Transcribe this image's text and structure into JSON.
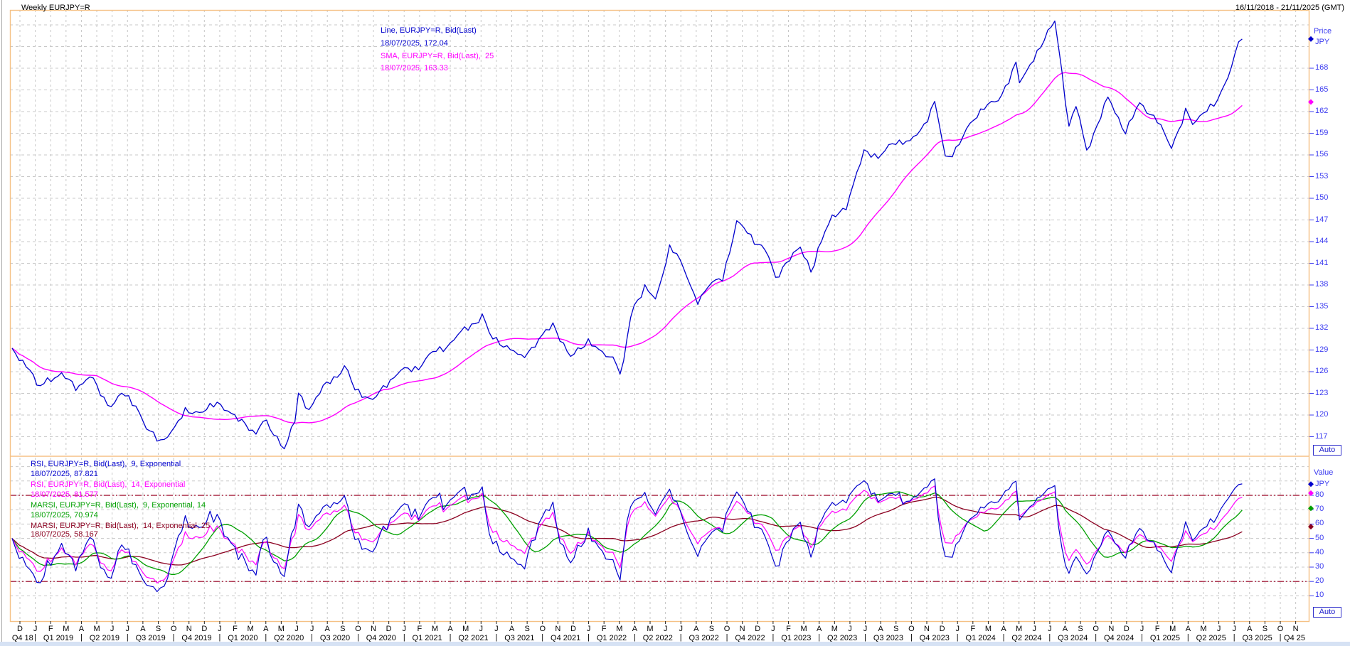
{
  "window": {
    "title": "Weekly EURJPY=R",
    "date_range": "16/11/2018 - 21/11/2025 (GMT)"
  },
  "colors": {
    "price_line": "#0000cc",
    "sma_line": "#ff00ff",
    "rsi9": "#0000cc",
    "rsi14": "#ff00ff",
    "marsi9_14": "#00a000",
    "marsi14_25": "#8b0020",
    "level_line": "#990022",
    "grid": "#c8c8c8",
    "frame": "#f5c185",
    "axis_text": "#3c3cf0",
    "x_axis_text": "#000000",
    "auto_button": "#2222cc"
  },
  "main_panel": {
    "legend": [
      {
        "text": "Line, EURJPY=R, Bid(Last)",
        "color": "#0000cc"
      },
      {
        "text": "18/07/2025, 172.04",
        "color": "#0000cc"
      },
      {
        "text": "SMA, EURJPY=R, Bid(Last),  25",
        "color": "#ff00ff"
      },
      {
        "text": "18/07/2025, 163.33",
        "color": "#ff00ff"
      }
    ],
    "axis": {
      "header": "Price",
      "currency": "JPY",
      "ticks": [
        168,
        165,
        162,
        159,
        156,
        153,
        150,
        147,
        144,
        141,
        138,
        135,
        132,
        129,
        126,
        123,
        120,
        117
      ],
      "markers": [
        {
          "value": 172.04,
          "color": "#0000cc"
        },
        {
          "value": 163.33,
          "color": "#ff00ff"
        }
      ],
      "auto_label": "Auto"
    }
  },
  "rsi_panel": {
    "legend": [
      {
        "text": "RSI, EURJPY=R, Bid(Last),  9, Exponential",
        "color": "#0000cc"
      },
      {
        "text": "18/07/2025, 87.821",
        "color": "#0000cc"
      },
      {
        "text": "RSI, EURJPY=R, Bid(Last),  14, Exponential",
        "color": "#ff00ff"
      },
      {
        "text": "18/07/2025, 81.577",
        "color": "#ff00ff"
      },
      {
        "text": "MARSI, EURJPY=R, Bid(Last),  9, Exponential, 14",
        "color": "#00a000"
      },
      {
        "text": "18/07/2025, 70.974",
        "color": "#00a000"
      },
      {
        "text": "MARSI, EURJPY=R, Bid(Last),  14, Exponential, 25",
        "color": "#8b0020"
      },
      {
        "text": "18/07/2025, 58.167",
        "color": "#8b0020"
      }
    ],
    "axis": {
      "header": "Value",
      "currency": "JPY",
      "ticks": [
        80,
        70,
        60,
        50,
        40,
        30,
        20,
        10
      ],
      "markers": [
        {
          "value": 87.821,
          "color": "#0000cc"
        },
        {
          "value": 81.577,
          "color": "#ff00ff"
        },
        {
          "value": 70.974,
          "color": "#00a000"
        },
        {
          "value": 58.167,
          "color": "#8b0020"
        }
      ],
      "auto_label": "Auto"
    },
    "levels": [
      80,
      20
    ]
  },
  "x_axis": {
    "months": [
      "D",
      "J",
      "F",
      "M",
      "A",
      "M",
      "J",
      "J",
      "A",
      "S",
      "O",
      "N",
      "D",
      "J",
      "F",
      "M",
      "A",
      "M",
      "J",
      "J",
      "A",
      "S",
      "O",
      "N",
      "D",
      "J",
      "F",
      "M",
      "A",
      "M",
      "J",
      "J",
      "A",
      "S",
      "O",
      "N",
      "D",
      "J",
      "F",
      "M",
      "A",
      "M",
      "J",
      "J",
      "A",
      "S",
      "O",
      "N",
      "D",
      "J",
      "F",
      "M",
      "A",
      "M",
      "J",
      "J",
      "A",
      "S",
      "O",
      "N",
      "D",
      "J",
      "F",
      "M",
      "A",
      "M",
      "J",
      "J",
      "A",
      "S",
      "O",
      "N",
      "D",
      "J",
      "F",
      "M",
      "A",
      "M",
      "J",
      "J",
      "A",
      "S",
      "O",
      "N"
    ],
    "quarters": [
      "Q4 18",
      "Q1 2019",
      "Q2 2019",
      "Q3 2019",
      "Q4 2019",
      "Q1 2020",
      "Q2 2020",
      "Q3 2020",
      "Q4 2020",
      "Q1 2021",
      "Q2 2021",
      "Q3 2021",
      "Q4 2021",
      "Q1 2022",
      "Q2 2022",
      "Q3 2022",
      "Q4 2022",
      "Q1 2023",
      "Q2 2023",
      "Q3 2023",
      "Q4 2023",
      "Q1 2024",
      "Q2 2024",
      "Q3 2024",
      "Q4 2024",
      "Q1 2025",
      "Q2 2025",
      "Q3 2025",
      "Q4 25"
    ]
  },
  "chart_data": {
    "type": "line",
    "title": "Weekly EURJPY=R",
    "interval": "weekly",
    "x_start": "2018-11-16",
    "x_end": "2025-11-21",
    "data_end": "2025-07-18",
    "panels": [
      {
        "name": "price",
        "ylabel": "Price JPY",
        "ylim": [
          114.3,
          176.2
        ],
        "tick_step": 3,
        "grid": true,
        "series": [
          {
            "name": "Line, EURJPY=R, Bid(Last)",
            "color": "#0000cc",
            "last_date": "18/07/2025",
            "last_value": 172.04,
            "anchors": [
              [
                "2018-11-16",
                128.8
              ],
              [
                "2018-12-07",
                127.5
              ],
              [
                "2018-12-28",
                125.6
              ],
              [
                "2019-01-04",
                123.6
              ],
              [
                "2019-01-25",
                124.9
              ],
              [
                "2019-02-22",
                125.6
              ],
              [
                "2019-03-22",
                123.8
              ],
              [
                "2019-04-19",
                125.4
              ],
              [
                "2019-05-17",
                122.0
              ],
              [
                "2019-05-31",
                121.3
              ],
              [
                "2019-06-21",
                123.0
              ],
              [
                "2019-07-19",
                121.3
              ],
              [
                "2019-08-09",
                117.9
              ],
              [
                "2019-09-06",
                116.4
              ],
              [
                "2019-10-04",
                118.2
              ],
              [
                "2019-10-25",
                120.7
              ],
              [
                "2019-11-29",
                120.3
              ],
              [
                "2019-12-27",
                121.9
              ],
              [
                "2020-01-31",
                119.6
              ],
              [
                "2020-02-21",
                118.9
              ],
              [
                "2020-03-13",
                117.3
              ],
              [
                "2020-03-27",
                119.3
              ],
              [
                "2020-04-24",
                116.9
              ],
              [
                "2020-05-08",
                115.2
              ],
              [
                "2020-05-29",
                119.4
              ],
              [
                "2020-06-05",
                123.2
              ],
              [
                "2020-06-26",
                120.7
              ],
              [
                "2020-07-31",
                124.6
              ],
              [
                "2020-08-28",
                125.8
              ],
              [
                "2020-09-04",
                126.8
              ],
              [
                "2020-09-25",
                123.7
              ],
              [
                "2020-10-30",
                121.9
              ],
              [
                "2020-11-27",
                124.4
              ],
              [
                "2020-12-25",
                126.1
              ],
              [
                "2021-01-29",
                126.6
              ],
              [
                "2021-02-26",
                128.6
              ],
              [
                "2021-03-26",
                129.6
              ],
              [
                "2021-04-30",
                131.9
              ],
              [
                "2021-05-28",
                133.2
              ],
              [
                "2021-06-04",
                133.9
              ],
              [
                "2021-06-18",
                131.0
              ],
              [
                "2021-07-23",
                129.4
              ],
              [
                "2021-08-20",
                127.9
              ],
              [
                "2021-09-17",
                129.8
              ],
              [
                "2021-10-22",
                132.6
              ],
              [
                "2021-11-26",
                127.9
              ],
              [
                "2021-12-31",
                130.4
              ],
              [
                "2022-01-28",
                128.4
              ],
              [
                "2022-02-25",
                127.8
              ],
              [
                "2022-03-04",
                125.1
              ],
              [
                "2022-03-25",
                134.2
              ],
              [
                "2022-04-22",
                138.0
              ],
              [
                "2022-05-13",
                135.7
              ],
              [
                "2022-06-10",
                143.6
              ],
              [
                "2022-06-24",
                142.3
              ],
              [
                "2022-07-29",
                136.3
              ],
              [
                "2022-08-05",
                135.9
              ],
              [
                "2022-08-26",
                137.9
              ],
              [
                "2022-09-23",
                139.0
              ],
              [
                "2022-10-21",
                146.8
              ],
              [
                "2022-11-25",
                144.2
              ],
              [
                "2022-12-16",
                142.9
              ],
              [
                "2022-12-30",
                140.3
              ],
              [
                "2023-01-06",
                138.8
              ],
              [
                "2023-01-27",
                141.2
              ],
              [
                "2023-02-24",
                143.1
              ],
              [
                "2023-03-17",
                139.9
              ],
              [
                "2023-03-31",
                143.3
              ],
              [
                "2023-04-28",
                147.6
              ],
              [
                "2023-05-26",
                148.9
              ],
              [
                "2023-06-30",
                156.9
              ],
              [
                "2023-07-28",
                155.4
              ],
              [
                "2023-08-25",
                157.9
              ],
              [
                "2023-09-29",
                157.7
              ],
              [
                "2023-10-27",
                160.3
              ],
              [
                "2023-11-17",
                163.3
              ],
              [
                "2023-12-08",
                155.4
              ],
              [
                "2023-12-29",
                156.9
              ],
              [
                "2024-01-26",
                160.2
              ],
              [
                "2024-02-23",
                162.8
              ],
              [
                "2024-03-22",
                163.4
              ],
              [
                "2024-04-26",
                168.9
              ],
              [
                "2024-05-03",
                165.6
              ],
              [
                "2024-05-31",
                169.6
              ],
              [
                "2024-06-28",
                172.9
              ],
              [
                "2024-07-12",
                174.5
              ],
              [
                "2024-07-26",
                166.9
              ],
              [
                "2024-08-09",
                159.9
              ],
              [
                "2024-08-23",
                162.9
              ],
              [
                "2024-09-13",
                156.5
              ],
              [
                "2024-10-25",
                163.9
              ],
              [
                "2024-11-29",
                159.2
              ],
              [
                "2024-12-27",
                163.1
              ],
              [
                "2025-01-31",
                160.9
              ],
              [
                "2025-02-28",
                156.9
              ],
              [
                "2025-03-28",
                162.3
              ],
              [
                "2025-04-11",
                159.9
              ],
              [
                "2025-05-02",
                162.2
              ],
              [
                "2025-05-30",
                163.4
              ],
              [
                "2025-06-20",
                167.0
              ],
              [
                "2025-07-04",
                170.3
              ],
              [
                "2025-07-11",
                172.6
              ],
              [
                "2025-07-18",
                172.04
              ]
            ]
          },
          {
            "name": "SMA, EURJPY=R, Bid(Last), 25",
            "derived_from": "price",
            "method": "sma",
            "period": 25,
            "color": "#ff00ff",
            "last_date": "18/07/2025",
            "last_value": 163.33
          }
        ]
      },
      {
        "name": "rsi",
        "ylabel": "Value",
        "ylim": [
          0,
          107
        ],
        "tick_step": 10,
        "grid": true,
        "levels": [
          80,
          20
        ],
        "series": [
          {
            "name": "RSI, EURJPY=R, Bid(Last), 9, Exponential",
            "method": "rsi",
            "period": 9,
            "color": "#0000cc",
            "last_value": 87.821
          },
          {
            "name": "RSI, EURJPY=R, Bid(Last), 14, Exponential",
            "method": "rsi",
            "period": 14,
            "color": "#ff00ff",
            "last_value": 81.577
          },
          {
            "name": "MARSI, EURJPY=R, Bid(Last), 9, Exponential, 14",
            "method": "sma_of_rsi9",
            "period": 14,
            "color": "#00a000",
            "last_value": 70.974
          },
          {
            "name": "MARSI, EURJPY=R, Bid(Last), 14, Exponential, 25",
            "method": "sma_of_rsi14",
            "period": 25,
            "color": "#8b0020",
            "last_value": 58.167
          }
        ]
      }
    ]
  }
}
